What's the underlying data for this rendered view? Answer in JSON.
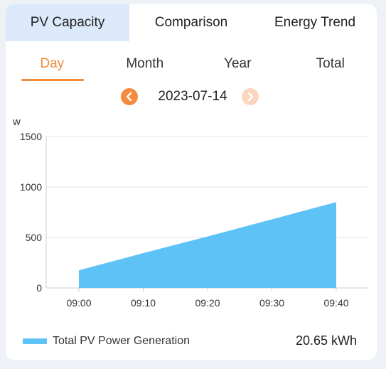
{
  "tabs": [
    {
      "label": "PV Capacity",
      "active": true
    },
    {
      "label": "Comparison",
      "active": false
    },
    {
      "label": "Energy Trend",
      "active": false
    }
  ],
  "subtabs": [
    {
      "label": "Day",
      "active": true
    },
    {
      "label": "Month",
      "active": false
    },
    {
      "label": "Year",
      "active": false
    },
    {
      "label": "Total",
      "active": false
    }
  ],
  "date": {
    "value": "2023-07-14",
    "prev_icon": "chevron-left-icon",
    "next_icon": "chevron-right-icon"
  },
  "colors": {
    "accent": "#f08a38",
    "area": "#5ec2f7",
    "active_tab_bg": "#dce9fb"
  },
  "chart_data": {
    "type": "area",
    "ylabel": "w",
    "ylim": [
      0,
      1500
    ],
    "yticks": [
      "0",
      "500",
      "1000",
      "1500"
    ],
    "x": [
      "09:00",
      "09:10",
      "09:20",
      "09:30",
      "09:40"
    ],
    "series": [
      {
        "name": "Total PV Power Generation",
        "values": [
          175,
          345,
          510,
          680,
          850
        ]
      }
    ],
    "grid": true,
    "legend": "bottom-left"
  },
  "summary": {
    "total": "20.65 kWh"
  }
}
